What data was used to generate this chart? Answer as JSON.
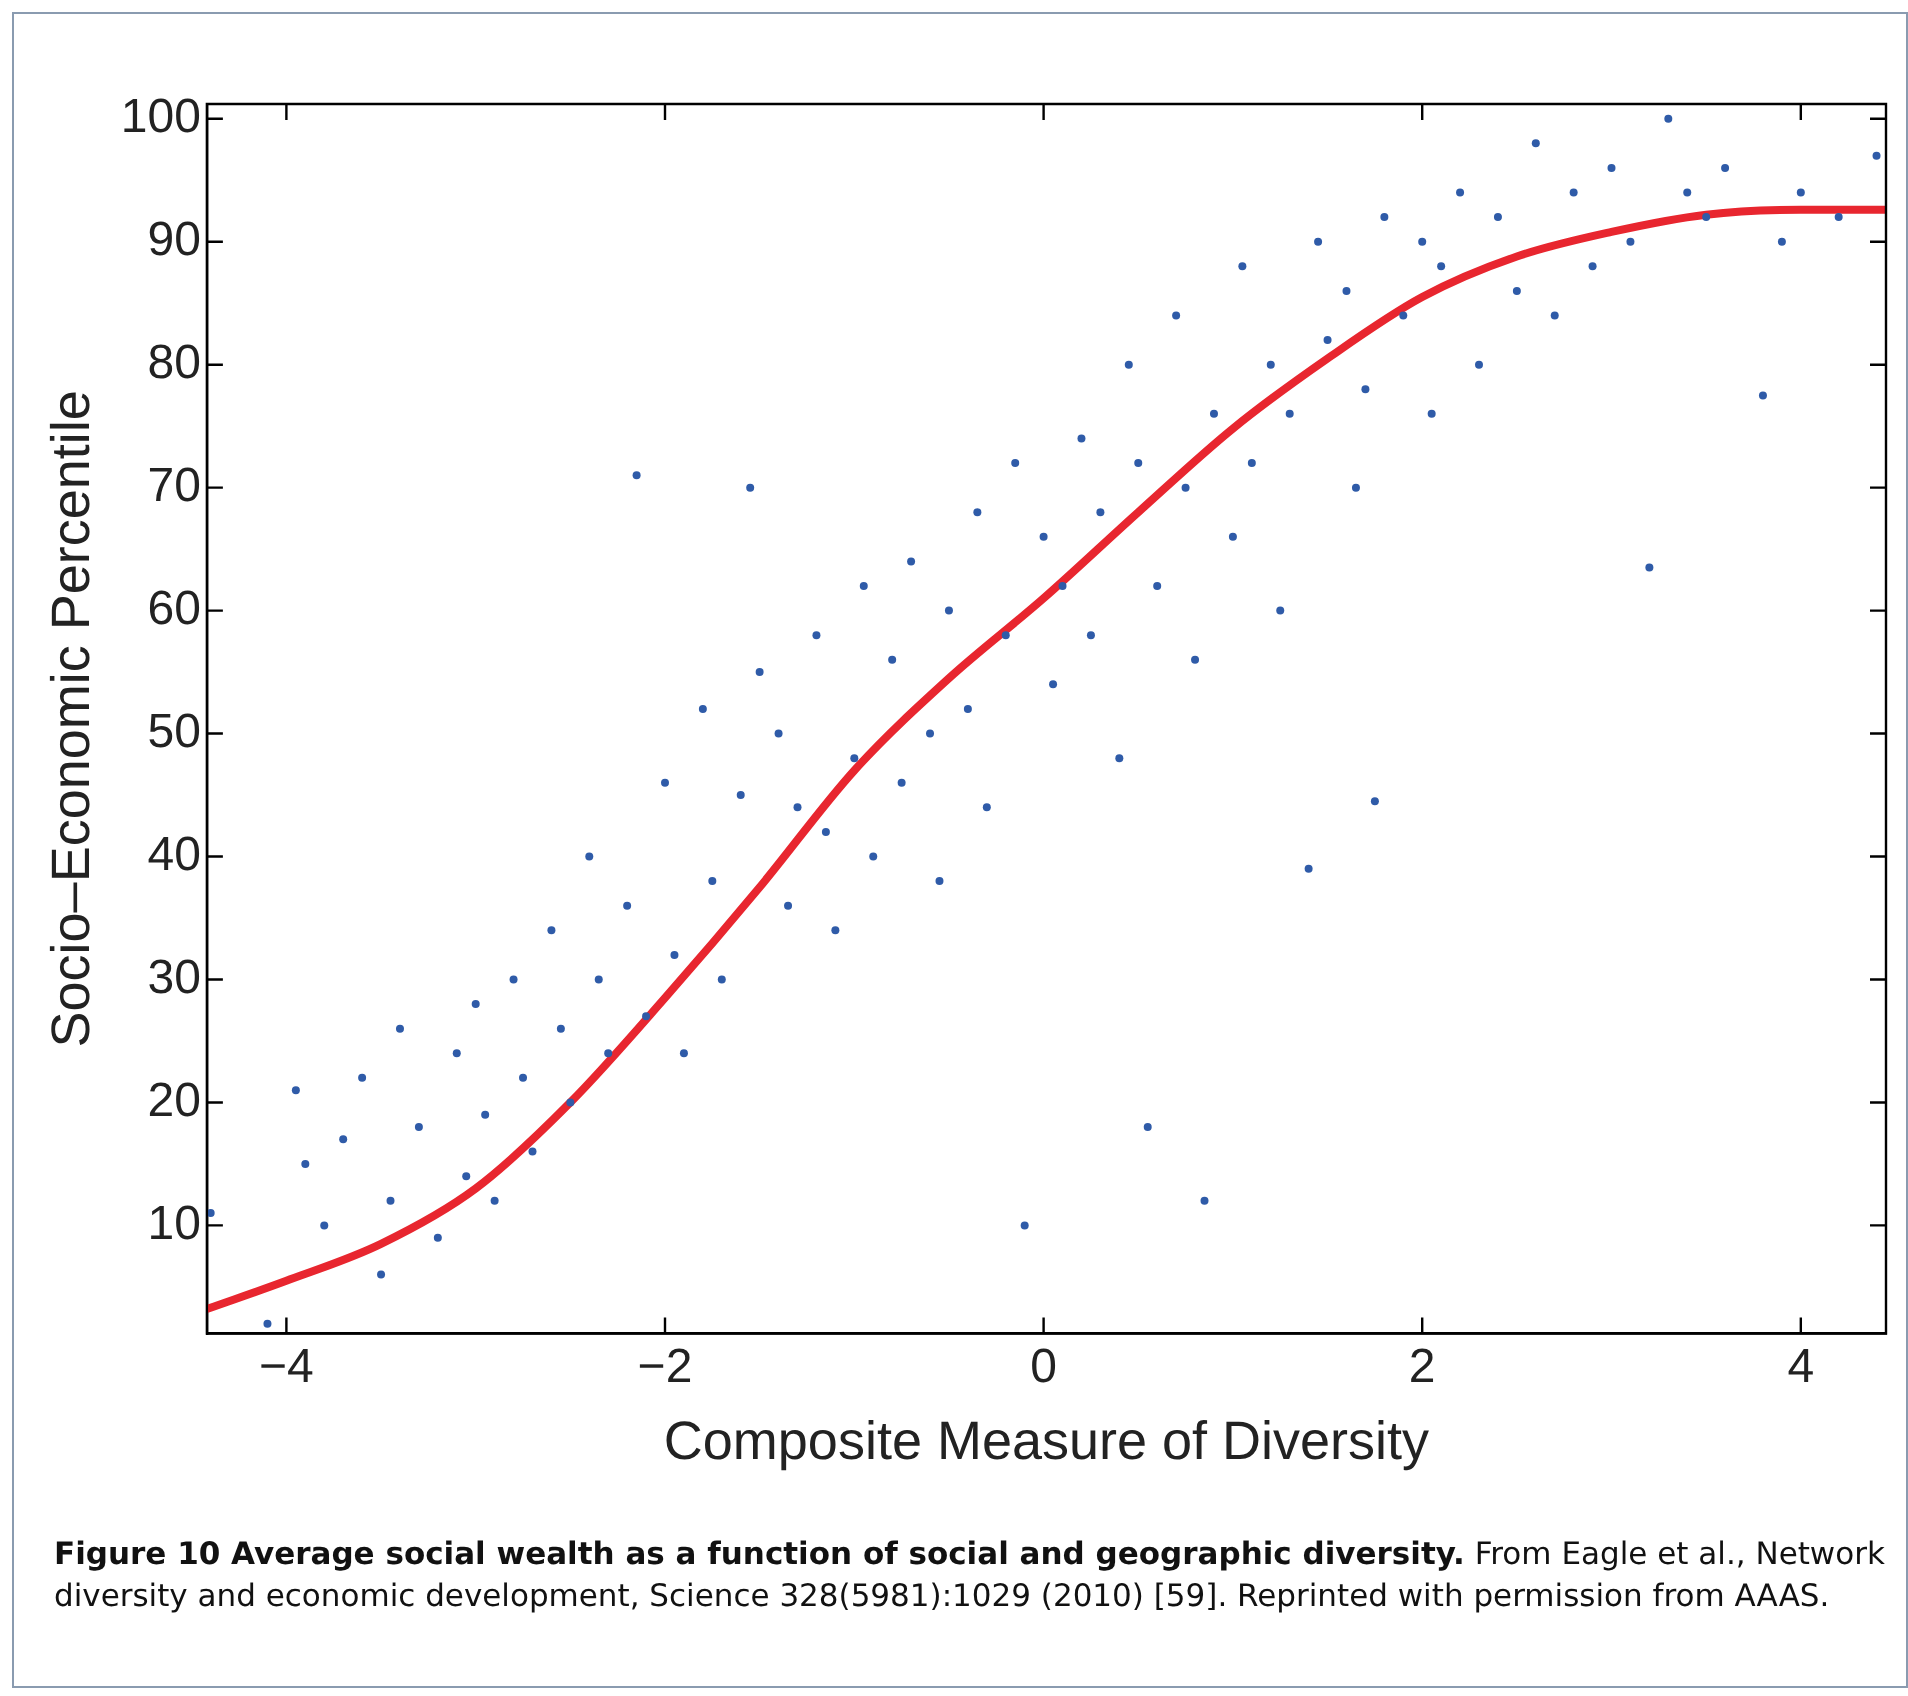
{
  "chart_data": {
    "type": "scatter",
    "xlabel": "Composite Measure of Diversity",
    "ylabel": "Socio–Economic Percentile",
    "xlim": [
      -4.42,
      4.45
    ],
    "ylim": [
      1.2,
      101.2
    ],
    "xticks": [
      -4,
      -2,
      0,
      2,
      4
    ],
    "yticks": [
      10,
      20,
      30,
      40,
      50,
      60,
      70,
      80,
      90,
      100
    ],
    "grid": false,
    "legend": false,
    "series": [
      {
        "marker": "circle",
        "color": "#2f5ba8",
        "x": [
          -4.4,
          -4.1,
          -3.95,
          -3.9,
          -3.8,
          -3.7,
          -3.6,
          -3.5,
          -3.45,
          -3.4,
          -3.3,
          -3.2,
          -3.1,
          -3.05,
          -3.0,
          -2.95,
          -2.9,
          -2.8,
          -2.75,
          -2.7,
          -2.6,
          -2.55,
          -2.5,
          -2.4,
          -2.35,
          -2.3,
          -2.2,
          -2.15,
          -2.1,
          -2.0,
          -1.95,
          -1.9,
          -1.8,
          -1.75,
          -1.7,
          -1.6,
          -1.55,
          -1.5,
          -1.4,
          -1.35,
          -1.3,
          -1.2,
          -1.15,
          -1.1,
          -1.0,
          -0.95,
          -0.9,
          -0.8,
          -0.75,
          -0.7,
          -0.6,
          -0.55,
          -0.5,
          -0.4,
          -0.35,
          -0.3,
          -0.2,
          -0.15,
          -0.1,
          0.0,
          0.05,
          0.1,
          0.2,
          0.25,
          0.3,
          0.4,
          0.45,
          0.5,
          0.55,
          0.6,
          0.7,
          0.75,
          0.8,
          0.85,
          0.9,
          1.0,
          1.05,
          1.1,
          1.2,
          1.25,
          1.3,
          1.4,
          1.45,
          1.5,
          1.6,
          1.65,
          1.7,
          1.75,
          1.8,
          1.9,
          2.0,
          2.05,
          2.1,
          2.2,
          2.3,
          2.4,
          2.5,
          2.6,
          2.7,
          2.8,
          2.9,
          3.0,
          3.1,
          3.2,
          3.3,
          3.4,
          3.5,
          3.6,
          3.8,
          3.9,
          4.0,
          4.2,
          4.4
        ],
        "values": [
          11,
          2,
          21,
          15,
          10,
          17,
          22,
          6,
          12,
          26,
          18,
          9,
          24,
          14,
          28,
          19,
          12,
          30,
          22,
          16,
          34,
          26,
          20,
          40,
          30,
          24,
          36,
          71,
          27,
          46,
          32,
          24,
          52,
          38,
          30,
          45,
          70,
          55,
          50,
          36,
          44,
          58,
          42,
          34,
          48,
          62,
          40,
          56,
          46,
          64,
          50,
          38,
          60,
          52,
          68,
          44,
          58,
          72,
          10,
          66,
          54,
          62,
          74,
          58,
          68,
          48,
          80,
          72,
          18,
          62,
          84,
          70,
          56,
          12,
          76,
          66,
          88,
          72,
          80,
          60,
          76,
          39,
          90,
          82,
          86,
          70,
          78,
          44.5,
          92,
          84,
          90,
          76,
          88,
          94,
          80,
          92,
          86,
          98,
          84,
          94,
          88,
          96,
          90,
          63.5,
          100,
          94,
          92,
          96,
          77.5,
          90,
          94,
          92,
          97
        ]
      },
      {
        "type": "line",
        "color": "#e8262f",
        "x": [
          -4.42,
          -4,
          -3.5,
          -3,
          -2.5,
          -2,
          -1.5,
          -1,
          -0.5,
          0,
          0.5,
          1,
          1.5,
          2,
          2.5,
          3,
          3.5,
          4,
          4.45
        ],
        "values": [
          3.2,
          5.5,
          8.5,
          13,
          20,
          28.5,
          37.5,
          47,
          54.5,
          61,
          68,
          74.8,
          80.5,
          85.5,
          88.8,
          90.8,
          92.2,
          92.6,
          92.6
        ]
      }
    ],
    "annotations": [
      "Figure 10 Average social wealth as a function of social and geographic diversity.",
      "From Eagle et al., Network diversity and economic development, Science 328(5981):1029 (2010) [59]. Reprinted with permission from AAAS."
    ]
  }
}
